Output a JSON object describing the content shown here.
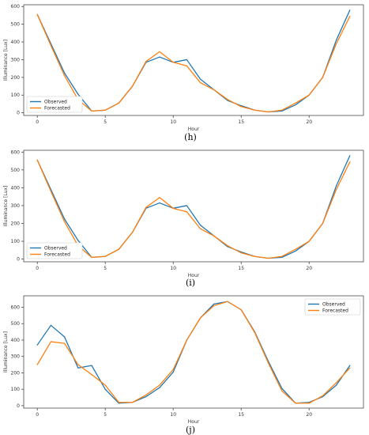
{
  "chart_data": [
    {
      "type": "line",
      "caption": "(h)",
      "xlabel": "Hour",
      "ylabel": "Illuminance [Lux]",
      "xlim": [
        -1,
        24
      ],
      "ylim": [
        -15,
        610
      ],
      "xticks": [
        0,
        5,
        10,
        15,
        20
      ],
      "yticks": [
        0,
        100,
        200,
        300,
        400,
        500,
        600
      ],
      "grid": false,
      "legend_position": "lower-left",
      "x": [
        0,
        1,
        2,
        3,
        4,
        5,
        6,
        7,
        8,
        9,
        10,
        11,
        12,
        13,
        14,
        15,
        16,
        17,
        18,
        19,
        20,
        21,
        22,
        23
      ],
      "series": [
        {
          "name": "Observed",
          "color": "#1f77b4",
          "values": [
            555,
            390,
            225,
            105,
            10,
            15,
            55,
            150,
            285,
            315,
            285,
            300,
            190,
            130,
            70,
            40,
            15,
            5,
            10,
            45,
            100,
            200,
            410,
            580
          ]
        },
        {
          "name": "Forecasted",
          "color": "#ff7f0e",
          "values": [
            555,
            380,
            210,
            75,
            10,
            15,
            55,
            150,
            290,
            345,
            285,
            265,
            170,
            130,
            75,
            35,
            15,
            5,
            15,
            55,
            100,
            200,
            390,
            545
          ]
        }
      ]
    },
    {
      "type": "line",
      "caption": "(i)",
      "xlabel": "Hour",
      "ylabel": "Illuminance [Lux]",
      "xlim": [
        -1,
        24
      ],
      "ylim": [
        -15,
        610
      ],
      "xticks": [
        0,
        5,
        10,
        15,
        20
      ],
      "yticks": [
        0,
        100,
        200,
        300,
        400,
        500,
        600
      ],
      "grid": false,
      "legend_position": "lower-left",
      "x": [
        0,
        1,
        2,
        3,
        4,
        5,
        6,
        7,
        8,
        9,
        10,
        11,
        12,
        13,
        14,
        15,
        16,
        17,
        18,
        19,
        20,
        21,
        22,
        23
      ],
      "series": [
        {
          "name": "Observed",
          "color": "#1f77b4",
          "values": [
            555,
            390,
            225,
            105,
            10,
            15,
            55,
            150,
            285,
            315,
            285,
            300,
            190,
            130,
            70,
            40,
            15,
            5,
            10,
            45,
            100,
            200,
            410,
            580
          ]
        },
        {
          "name": "Forecasted",
          "color": "#ff7f0e",
          "values": [
            555,
            380,
            210,
            75,
            10,
            15,
            55,
            150,
            290,
            345,
            285,
            265,
            170,
            130,
            75,
            35,
            15,
            5,
            15,
            55,
            100,
            200,
            390,
            545
          ]
        }
      ]
    },
    {
      "type": "line",
      "caption": "(j)",
      "xlabel": "Hour",
      "ylabel": "Illuminance [Lux]",
      "xlim": [
        -1,
        24
      ],
      "ylim": [
        -15,
        670
      ],
      "xticks": [
        0,
        5,
        10,
        15,
        20
      ],
      "yticks": [
        0,
        100,
        200,
        300,
        400,
        500,
        600
      ],
      "grid": false,
      "legend_position": "upper-right",
      "x": [
        0,
        1,
        2,
        3,
        4,
        5,
        6,
        7,
        8,
        9,
        10,
        11,
        12,
        13,
        14,
        15,
        16,
        17,
        18,
        19,
        20,
        21,
        22,
        23
      ],
      "series": [
        {
          "name": "Observed",
          "color": "#1f77b4",
          "values": [
            370,
            490,
            420,
            230,
            245,
            100,
            15,
            20,
            55,
            110,
            205,
            400,
            535,
            620,
            635,
            585,
            450,
            270,
            105,
            15,
            20,
            55,
            125,
            245
          ]
        },
        {
          "name": "Forecasted",
          "color": "#ff7f0e",
          "values": [
            250,
            390,
            380,
            250,
            190,
            125,
            20,
            20,
            65,
            125,
            220,
            400,
            535,
            610,
            635,
            585,
            445,
            260,
            90,
            15,
            15,
            60,
            140,
            230
          ]
        }
      ]
    }
  ]
}
